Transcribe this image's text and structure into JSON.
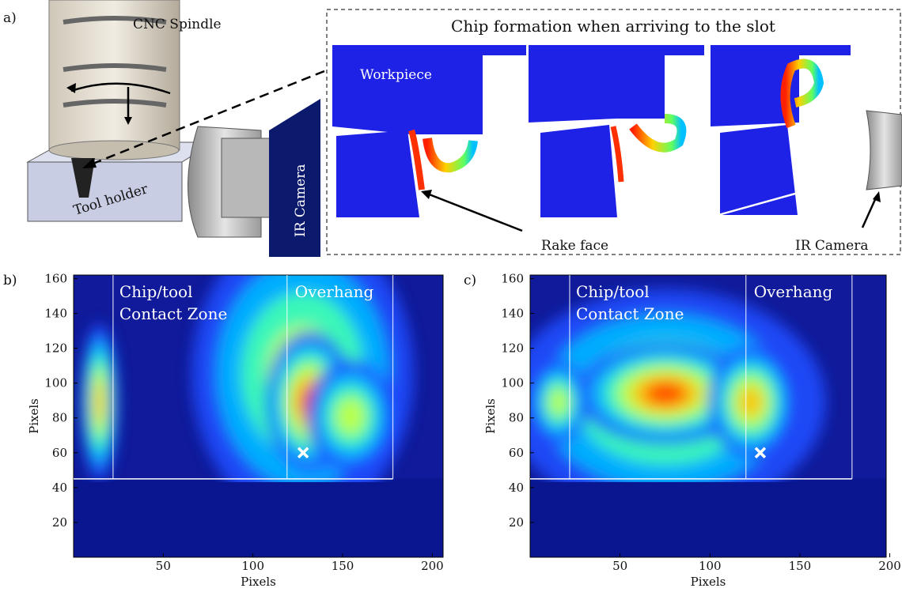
{
  "panel_a": {
    "label": "a)",
    "spindle_label": "CNC Spindle",
    "holder_label": "Tool holder",
    "camera_label": "IR Camera",
    "inset_title": "Chip formation when arriving to the slot",
    "workpiece_label": "Workpiece",
    "rake_face_label": "Rake face",
    "inset_camera_label": "IR Camera"
  },
  "chart_data": [
    {
      "type": "heatmap",
      "panel_label": "b)",
      "xlabel": "Pixels",
      "ylabel": "Pixels",
      "xlim": [
        0,
        206
      ],
      "ylim": [
        0,
        162
      ],
      "xticks": [
        50,
        100,
        150,
        200
      ],
      "yticks": [
        20,
        40,
        60,
        80,
        100,
        120,
        140,
        160
      ],
      "zone_labels": [
        "Chip/tool",
        "Contact Zone"
      ],
      "overhang_label": "Overhang",
      "marker": {
        "x": 128,
        "y": 60
      },
      "boundaries_x": [
        22,
        119,
        178
      ],
      "boundary_y": 45
    },
    {
      "type": "heatmap",
      "panel_label": "c)",
      "xlabel": "Pixels",
      "ylabel": "Pixels",
      "xlim": [
        0,
        198
      ],
      "ylim": [
        0,
        162
      ],
      "xticks": [
        50,
        100,
        150,
        200
      ],
      "yticks": [
        20,
        40,
        60,
        80,
        100,
        120,
        140,
        160
      ],
      "zone_labels": [
        "Chip/tool",
        "Contact Zone"
      ],
      "overhang_label": "Overhang",
      "marker": {
        "x": 128,
        "y": 60
      },
      "boundaries_x": [
        22,
        120,
        179
      ],
      "boundary_y": 45
    }
  ]
}
